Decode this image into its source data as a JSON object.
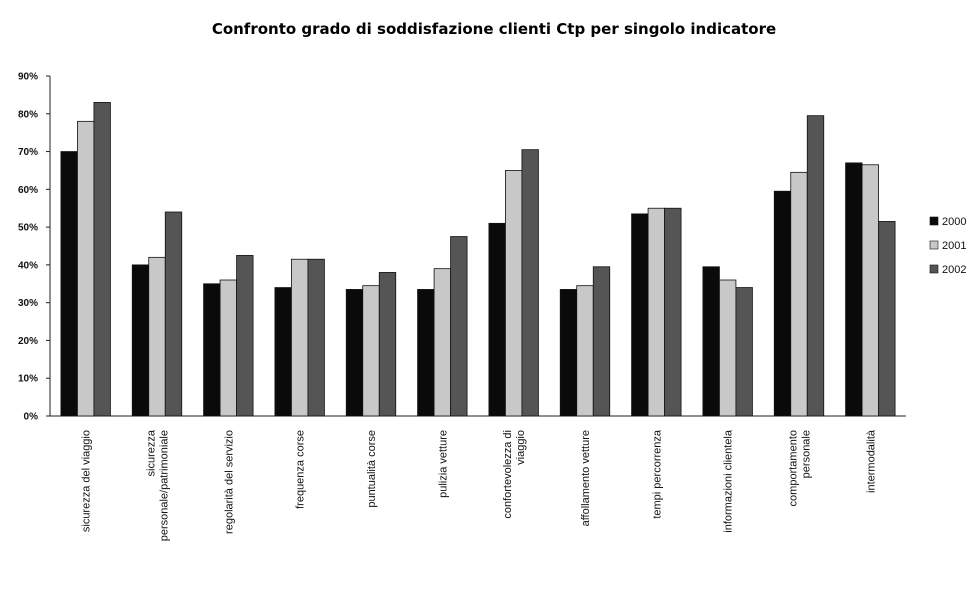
{
  "chart_data": {
    "type": "bar",
    "title": "Confronto grado di soddisfazione clienti Ctp per singolo indicatore",
    "xlabel": "",
    "ylabel": "",
    "ylim": [
      0,
      90
    ],
    "yticks": [
      "0%",
      "10%",
      "20%",
      "30%",
      "40%",
      "50%",
      "60%",
      "70%",
      "80%",
      "90%"
    ],
    "grid": false,
    "legend_position": "right",
    "categories": [
      [
        "sicurezza del viaggio"
      ],
      [
        "sicurezza",
        "personale/patrimoniale"
      ],
      [
        "regolarità del servizio"
      ],
      [
        "frequenza corse"
      ],
      [
        "puntualità corse"
      ],
      [
        "pulizia vetture"
      ],
      [
        "confortevolezza di",
        "viaggio"
      ],
      [
        "affollamento vetture"
      ],
      [
        "tempi percorrenza"
      ],
      [
        "informazioni clientela"
      ],
      [
        "comportamento",
        "personale"
      ],
      [
        "intermodalità"
      ]
    ],
    "series": [
      {
        "name": "2000",
        "color": "#0a0a0a",
        "values": [
          70,
          40,
          35,
          34,
          33.5,
          33.5,
          51,
          33.5,
          53.5,
          39.5,
          59.5,
          67
        ]
      },
      {
        "name": "2001",
        "color": "#c8c8c8",
        "values": [
          78,
          42,
          36,
          41.5,
          34.5,
          39,
          65,
          34.5,
          55,
          36,
          64.5,
          66.5
        ]
      },
      {
        "name": "2002",
        "color": "#555555",
        "values": [
          83,
          54,
          42.5,
          41.5,
          38,
          47.5,
          70.5,
          39.5,
          55,
          34,
          79.5,
          51.5
        ]
      }
    ]
  }
}
